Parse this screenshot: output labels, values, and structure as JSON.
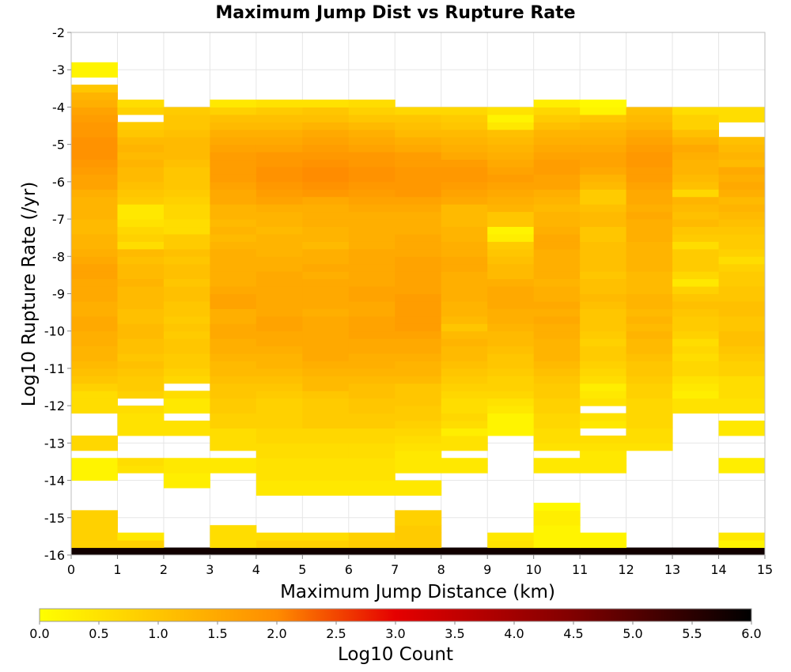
{
  "chart_data": {
    "type": "heatmap",
    "title": "Maximum Jump Dist vs Rupture Rate",
    "xlabel": "Maximum Jump Distance (km)",
    "ylabel": "Log10 Rupture Rate (/yr)",
    "xlim": [
      0,
      15
    ],
    "ylim": [
      -16,
      -2
    ],
    "x_ticks": [
      "0",
      "1",
      "2",
      "3",
      "4",
      "5",
      "6",
      "7",
      "8",
      "9",
      "10",
      "11",
      "12",
      "13",
      "14",
      "15"
    ],
    "y_ticks": [
      "-2",
      "-3",
      "-4",
      "-5",
      "-6",
      "-7",
      "-8",
      "-9",
      "-10",
      "-11",
      "-12",
      "-13",
      "-14",
      "-15",
      "-16"
    ],
    "x_bin_width": 1,
    "y_bin_height": 0.2,
    "y_row_starts": [
      -16,
      -15.8,
      -15.6,
      -15.4,
      -15.2,
      -15,
      -14.8,
      -14.6,
      -14.4,
      -14.2,
      -14,
      -13.8,
      -13.6,
      -13.4,
      -13.2,
      -13,
      -12.8,
      -12.6,
      -12.4,
      -12.2,
      -12,
      -11.8,
      -11.6,
      -11.4,
      -11.2,
      -11,
      -10.8,
      -10.6,
      -10.4,
      -10.2,
      -10,
      -9.8,
      -9.6,
      -9.4,
      -9.2,
      -9,
      -8.8,
      -8.6,
      -8.4,
      -8.2,
      -8,
      -7.8,
      -7.6,
      -7.4,
      -7.2,
      -7,
      -6.8,
      -6.6,
      -6.4,
      -6.2,
      -6,
      -5.8,
      -5.6,
      -5.4,
      -5.2,
      -5,
      -4.8,
      -4.6,
      -4.4,
      -4.2,
      -4,
      -3.8,
      -3.6,
      -3.4,
      -3.2,
      -3,
      -2.8
    ],
    "z_values_log10_count": [
      [
        5.8,
        5.8,
        5.8,
        5.8,
        5.8,
        5.8,
        5.8,
        5.8,
        5.8,
        5.8,
        5.8,
        5.8,
        5.8,
        5.8,
        5.8
      ],
      [
        0.8,
        0.8,
        null,
        0.6,
        0.8,
        0.8,
        0.9,
        0.9,
        null,
        0.5,
        0.2,
        0.2,
        null,
        null,
        0.2
      ],
      [
        0.8,
        0.4,
        null,
        0.6,
        0.6,
        0.6,
        0.8,
        0.9,
        null,
        0.4,
        0.2,
        0.2,
        null,
        null,
        0.4
      ],
      [
        0.8,
        null,
        null,
        0.6,
        null,
        null,
        null,
        0.9,
        null,
        null,
        0.2,
        null,
        null,
        null,
        null
      ],
      [
        0.8,
        null,
        null,
        null,
        null,
        null,
        null,
        0.8,
        null,
        null,
        0.3,
        null,
        null,
        null,
        null
      ],
      [
        0.8,
        null,
        null,
        null,
        null,
        null,
        null,
        0.8,
        null,
        null,
        0.3,
        null,
        null,
        null,
        null
      ],
      [
        null,
        null,
        null,
        null,
        null,
        null,
        null,
        null,
        null,
        null,
        0.1,
        null,
        null,
        null,
        null
      ],
      [
        null,
        null,
        null,
        null,
        null,
        null,
        null,
        null,
        null,
        null,
        null,
        null,
        null,
        null,
        null
      ],
      [
        null,
        null,
        null,
        null,
        0.4,
        0.4,
        0.4,
        0.4,
        null,
        null,
        null,
        null,
        null,
        null,
        null
      ],
      [
        null,
        null,
        0.3,
        null,
        0.4,
        0.4,
        0.4,
        0.4,
        null,
        null,
        null,
        null,
        null,
        null,
        null
      ],
      [
        0.2,
        null,
        0.3,
        null,
        0.5,
        0.5,
        0.5,
        null,
        null,
        null,
        null,
        null,
        null,
        null,
        null
      ],
      [
        0.2,
        0.5,
        0.4,
        0.4,
        0.5,
        0.5,
        0.5,
        0.4,
        0.4,
        null,
        0.4,
        0.4,
        null,
        null,
        0.3
      ],
      [
        0.2,
        0.6,
        0.4,
        0.4,
        0.5,
        0.5,
        0.5,
        0.4,
        0.4,
        null,
        0.4,
        0.4,
        null,
        null,
        0.3
      ],
      [
        null,
        null,
        null,
        null,
        0.6,
        0.6,
        0.6,
        0.4,
        null,
        null,
        null,
        0.4,
        null,
        null,
        null
      ],
      [
        0.7,
        null,
        null,
        0.6,
        0.6,
        0.6,
        0.6,
        0.5,
        0.5,
        null,
        0.5,
        0.5,
        0.5,
        null,
        null
      ],
      [
        0.7,
        null,
        null,
        0.6,
        0.7,
        0.7,
        0.7,
        0.6,
        0.5,
        null,
        0.6,
        0.6,
        0.6,
        null,
        null
      ],
      [
        null,
        0.5,
        0.5,
        0.6,
        0.7,
        0.7,
        0.7,
        0.7,
        0.3,
        0.2,
        0.6,
        null,
        0.6,
        null,
        0.4
      ],
      [
        null,
        0.5,
        0.5,
        0.8,
        0.8,
        0.9,
        0.9,
        0.8,
        0.6,
        0.2,
        0.7,
        0.4,
        0.7,
        null,
        0.4
      ],
      [
        null,
        0.5,
        null,
        0.8,
        0.8,
        0.9,
        0.9,
        0.9,
        0.7,
        0.2,
        0.7,
        0.5,
        0.7,
        null,
        null
      ],
      [
        0.6,
        0.6,
        0.4,
        0.9,
        0.8,
        0.9,
        1.0,
        0.9,
        0.6,
        0.4,
        0.8,
        null,
        0.7,
        0.5,
        0.5
      ],
      [
        0.6,
        null,
        0.4,
        0.9,
        0.8,
        0.9,
        1.0,
        1.0,
        0.6,
        0.5,
        0.8,
        0.5,
        0.7,
        0.5,
        0.5
      ],
      [
        0.6,
        0.8,
        0.6,
        1.0,
        0.9,
        1.0,
        1.1,
        1.0,
        0.7,
        0.7,
        0.9,
        0.4,
        0.8,
        0.3,
        0.6
      ],
      [
        0.8,
        0.9,
        null,
        1.0,
        1.0,
        1.2,
        1.1,
        1.0,
        0.8,
        0.8,
        0.9,
        0.3,
        0.8,
        0.4,
        0.6
      ],
      [
        1.0,
        0.9,
        0.7,
        1.1,
        1.1,
        1.2,
        1.2,
        1.2,
        0.9,
        0.8,
        1.0,
        0.6,
        0.9,
        0.5,
        0.6
      ],
      [
        1.1,
        1.0,
        0.8,
        1.2,
        1.2,
        1.3,
        1.3,
        1.3,
        1.0,
        0.9,
        1.1,
        0.7,
        1.0,
        0.7,
        0.8
      ],
      [
        1.2,
        1.1,
        0.9,
        1.2,
        1.3,
        1.4,
        1.4,
        1.3,
        1.1,
        1.0,
        1.2,
        0.8,
        1.0,
        0.7,
        0.8
      ],
      [
        1.3,
        1.0,
        0.9,
        1.3,
        1.3,
        1.5,
        1.4,
        1.4,
        1.2,
        1.0,
        1.3,
        0.9,
        1.1,
        0.6,
        0.9
      ],
      [
        1.3,
        1.1,
        1.0,
        1.4,
        1.4,
        1.5,
        1.5,
        1.5,
        1.2,
        1.1,
        1.3,
        0.9,
        1.2,
        0.7,
        1.0
      ],
      [
        1.4,
        1.1,
        1.0,
        1.4,
        1.5,
        1.5,
        1.5,
        1.5,
        1.3,
        1.2,
        1.3,
        0.8,
        1.2,
        0.6,
        1.1
      ],
      [
        1.4,
        1.2,
        0.9,
        1.5,
        1.5,
        1.5,
        1.6,
        1.6,
        1.2,
        1.2,
        1.4,
        0.9,
        1.3,
        0.8,
        1.1
      ],
      [
        1.5,
        1.2,
        1.0,
        1.5,
        1.6,
        1.5,
        1.6,
        1.7,
        1.0,
        1.3,
        1.4,
        1.0,
        1.2,
        0.9,
        1.0
      ],
      [
        1.5,
        1.1,
        0.9,
        1.4,
        1.6,
        1.5,
        1.6,
        1.7,
        1.2,
        1.4,
        1.5,
        1.0,
        1.3,
        0.9,
        1.0
      ],
      [
        1.4,
        1.1,
        1.0,
        1.4,
        1.5,
        1.4,
        1.5,
        1.7,
        1.3,
        1.4,
        1.4,
        1.0,
        1.2,
        1.0,
        1.1
      ],
      [
        1.4,
        1.2,
        1.0,
        1.6,
        1.5,
        1.5,
        1.5,
        1.7,
        1.3,
        1.5,
        1.5,
        1.1,
        1.3,
        1.1,
        1.1
      ],
      [
        1.5,
        1.2,
        1.1,
        1.6,
        1.5,
        1.5,
        1.6,
        1.7,
        1.4,
        1.5,
        1.4,
        1.2,
        1.3,
        1.0,
        1.0
      ],
      [
        1.5,
        1.2,
        1.1,
        1.5,
        1.5,
        1.5,
        1.6,
        1.6,
        1.4,
        1.5,
        1.4,
        1.1,
        1.2,
        0.8,
        1.0
      ],
      [
        1.5,
        1.3,
        1.0,
        1.4,
        1.5,
        1.5,
        1.5,
        1.6,
        1.4,
        1.4,
        1.3,
        1.1,
        1.2,
        0.4,
        0.9
      ],
      [
        1.6,
        1.2,
        1.1,
        1.4,
        1.5,
        1.4,
        1.5,
        1.6,
        1.4,
        1.2,
        1.4,
        1.0,
        1.2,
        0.7,
        0.9
      ],
      [
        1.6,
        1.2,
        1.1,
        1.4,
        1.4,
        1.5,
        1.5,
        1.6,
        1.5,
        1.2,
        1.4,
        1.1,
        1.3,
        0.9,
        0.8
      ],
      [
        1.5,
        1.1,
        1.0,
        1.4,
        1.4,
        1.4,
        1.5,
        1.6,
        1.5,
        1.1,
        1.4,
        1.1,
        1.3,
        0.9,
        0.6
      ],
      [
        1.4,
        1.2,
        1.1,
        1.4,
        1.3,
        1.4,
        1.5,
        1.5,
        1.4,
        1.0,
        1.4,
        1.1,
        1.3,
        0.9,
        0.8
      ],
      [
        1.3,
        0.6,
        0.9,
        1.3,
        1.3,
        1.2,
        1.4,
        1.5,
        1.4,
        0.9,
        1.5,
        1.1,
        1.3,
        0.6,
        0.9
      ],
      [
        1.3,
        0.8,
        0.9,
        1.2,
        1.3,
        1.3,
        1.4,
        1.5,
        1.3,
        0.3,
        1.5,
        1.0,
        1.4,
        0.9,
        0.9
      ],
      [
        1.2,
        0.7,
        0.6,
        1.3,
        1.2,
        1.3,
        1.4,
        1.4,
        1.3,
        0.2,
        1.4,
        1.0,
        1.4,
        1.0,
        1.0
      ],
      [
        1.2,
        0.5,
        0.6,
        1.2,
        1.3,
        1.4,
        1.4,
        1.4,
        1.2,
        1.0,
        1.3,
        1.2,
        1.4,
        1.2,
        1.1
      ],
      [
        1.3,
        0.4,
        0.7,
        1.3,
        1.3,
        1.4,
        1.4,
        1.4,
        1.2,
        1.0,
        1.3,
        1.2,
        1.5,
        1.1,
        1.2
      ],
      [
        1.3,
        0.4,
        0.7,
        1.3,
        1.4,
        1.4,
        1.5,
        1.5,
        1.2,
        1.3,
        1.2,
        1.1,
        1.4,
        1.2,
        1.3
      ],
      [
        1.3,
        0.9,
        0.8,
        1.5,
        1.6,
        1.5,
        1.6,
        1.6,
        1.5,
        1.4,
        1.3,
        0.9,
        1.5,
        1.3,
        1.2
      ],
      [
        1.4,
        1.0,
        0.9,
        1.5,
        1.7,
        1.8,
        1.7,
        1.8,
        1.6,
        1.5,
        1.4,
        0.9,
        1.5,
        0.7,
        1.4
      ],
      [
        1.6,
        1.1,
        1.0,
        1.6,
        1.8,
        1.9,
        1.8,
        1.8,
        1.7,
        1.6,
        1.6,
        1.2,
        1.6,
        1.1,
        1.5
      ],
      [
        1.6,
        1.2,
        1.0,
        1.7,
        1.9,
        2.0,
        1.9,
        1.8,
        1.8,
        1.7,
        1.6,
        1.3,
        1.7,
        1.2,
        1.4
      ],
      [
        1.7,
        1.2,
        1.0,
        1.7,
        1.9,
        2.0,
        1.9,
        1.8,
        1.8,
        1.6,
        1.7,
        1.5,
        1.7,
        1.3,
        1.5
      ],
      [
        1.8,
        1.3,
        1.1,
        1.7,
        1.8,
        1.9,
        1.8,
        1.7,
        1.7,
        1.5,
        1.7,
        1.6,
        1.8,
        1.3,
        1.2
      ],
      [
        1.9,
        1.2,
        1.2,
        1.7,
        1.8,
        1.8,
        1.8,
        1.7,
        1.5,
        1.4,
        1.6,
        1.6,
        1.8,
        1.4,
        1.3
      ],
      [
        1.9,
        1.3,
        1.2,
        1.6,
        1.6,
        1.7,
        1.6,
        1.5,
        1.4,
        1.3,
        1.5,
        1.5,
        1.7,
        1.5,
        1.2
      ],
      [
        1.9,
        1.2,
        1.2,
        1.5,
        1.5,
        1.6,
        1.5,
        1.4,
        1.3,
        1.2,
        1.4,
        1.4,
        1.6,
        1.3,
        1.1
      ],
      [
        1.8,
        1.0,
        1.1,
        1.4,
        1.4,
        1.5,
        1.4,
        1.2,
        1.2,
        1.1,
        1.3,
        1.3,
        1.5,
        1.1,
        null
      ],
      [
        1.8,
        0.9,
        1.0,
        1.2,
        1.2,
        1.3,
        1.2,
        1.1,
        1.0,
        0.4,
        1.1,
        1.2,
        1.3,
        0.8,
        null
      ],
      [
        1.7,
        null,
        1.0,
        1.1,
        1.1,
        1.1,
        1.0,
        1.0,
        0.9,
        0.2,
        0.9,
        1.0,
        1.2,
        0.8,
        0.6
      ],
      [
        1.6,
        0.8,
        0.9,
        0.8,
        0.9,
        1.0,
        0.8,
        0.7,
        0.7,
        0.5,
        0.7,
        0.2,
        1.1,
        0.6,
        0.6
      ],
      [
        1.4,
        0.6,
        null,
        0.4,
        0.5,
        0.5,
        0.6,
        null,
        null,
        null,
        0.3,
        0.1,
        null,
        null,
        null
      ],
      [
        1.3,
        null,
        null,
        null,
        null,
        null,
        null,
        null,
        null,
        null,
        null,
        null,
        null,
        null,
        null
      ],
      [
        1.0,
        null,
        null,
        null,
        null,
        null,
        null,
        null,
        null,
        null,
        null,
        null,
        null,
        null,
        null
      ],
      [
        null,
        null,
        null,
        null,
        null,
        null,
        null,
        null,
        null,
        null,
        null,
        null,
        null,
        null,
        null
      ],
      [
        0.2,
        null,
        null,
        null,
        null,
        null,
        null,
        null,
        null,
        null,
        null,
        null,
        null,
        null,
        null
      ],
      [
        0.2,
        null,
        null,
        null,
        null,
        null,
        null,
        null,
        null,
        null,
        null,
        null,
        null,
        null,
        null
      ]
    ],
    "colorbar": {
      "label": "Log10 Count",
      "range": [
        0,
        6
      ],
      "ticks": [
        "0.0",
        "0.5",
        "1.0",
        "1.5",
        "2.0",
        "2.5",
        "3.0",
        "3.5",
        "4.0",
        "4.5",
        "5.0",
        "5.5",
        "6.0"
      ],
      "stops": [
        {
          "v": 0.0,
          "color": "#ffff00"
        },
        {
          "v": 2.0,
          "color": "#ff8c00"
        },
        {
          "v": 3.0,
          "color": "#e50000"
        },
        {
          "v": 4.5,
          "color": "#800000"
        },
        {
          "v": 6.0,
          "color": "#000000"
        }
      ]
    },
    "grid": true
  }
}
